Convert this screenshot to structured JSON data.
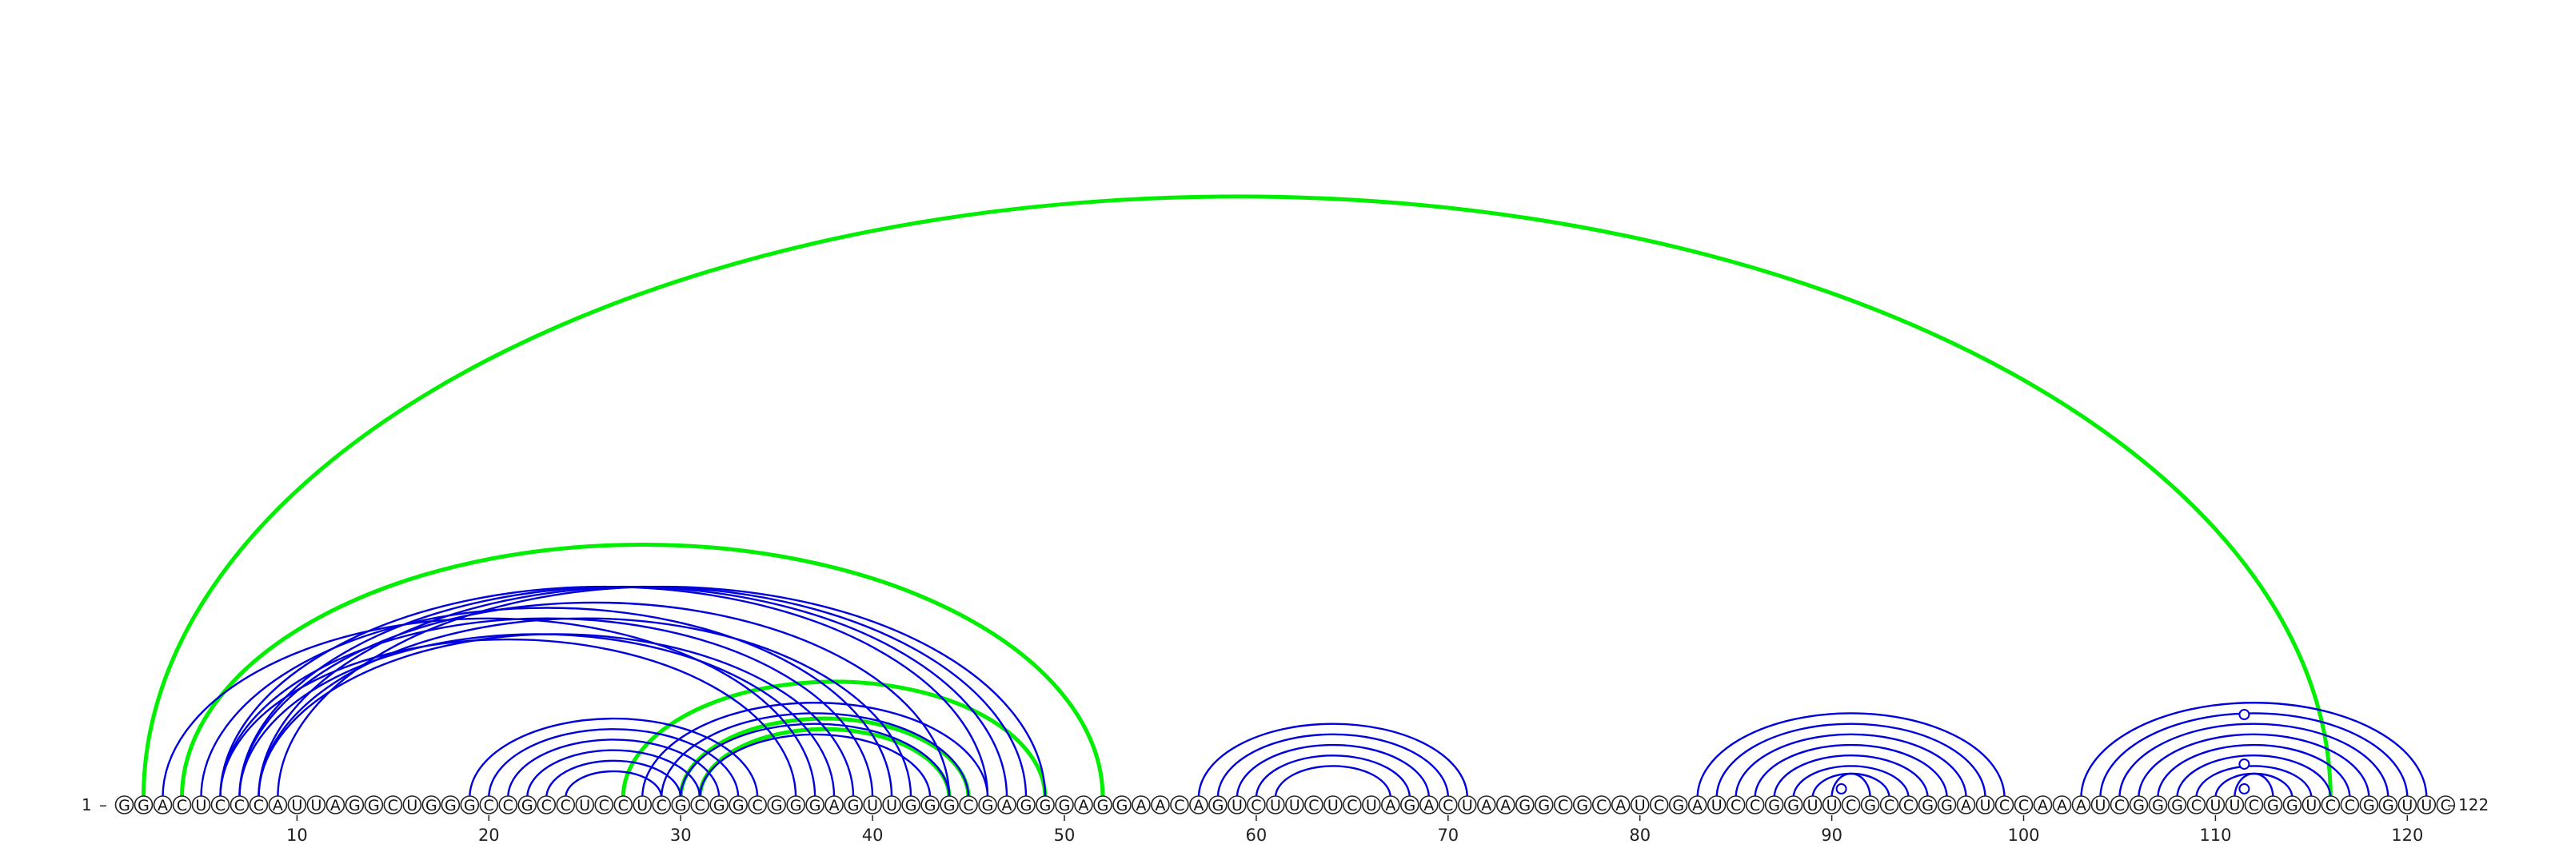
{
  "diagram": {
    "type": "rna-arc-diagram",
    "sequence": "GGACUCCCAUUAGGCUGGGCCGCCUCCUCGCGGCGGGAGUUGGGCGAGGGAGGAACAGUCUUCUCUAGACUAAGGCGCAUCGAUCCGGUUCGCCGGAUCCAAAUCGGGCUUCGGUCCGGUUC",
    "start_label": "1",
    "end_label": "122",
    "ticks": [
      10,
      20,
      30,
      40,
      50,
      60,
      70,
      80,
      90,
      100,
      110,
      120
    ],
    "colors": {
      "stem": "#0000dd",
      "pseudoknot": "#00ee00",
      "text": "#111111"
    },
    "blue_pairs": [
      [
        3,
        37
      ],
      [
        6,
        36
      ],
      [
        7,
        38
      ],
      [
        8,
        39
      ],
      [
        5,
        41
      ],
      [
        6,
        40
      ],
      [
        7,
        44
      ],
      [
        8,
        42
      ],
      [
        6,
        46
      ],
      [
        7,
        47
      ],
      [
        8,
        48
      ],
      [
        9,
        49
      ],
      [
        19,
        34
      ],
      [
        20,
        33
      ],
      [
        21,
        32
      ],
      [
        22,
        31
      ],
      [
        23,
        30
      ],
      [
        24,
        29
      ],
      [
        28,
        46
      ],
      [
        29,
        45
      ],
      [
        30,
        44
      ],
      [
        31,
        43
      ],
      [
        57,
        71
      ],
      [
        58,
        70
      ],
      [
        59,
        69
      ],
      [
        60,
        68
      ],
      [
        61,
        67
      ],
      [
        83,
        99
      ],
      [
        84,
        98
      ],
      [
        85,
        97
      ],
      [
        86,
        96
      ],
      [
        87,
        95
      ],
      [
        88,
        94
      ],
      [
        89,
        93
      ],
      [
        90,
        92
      ],
      [
        103,
        121
      ],
      [
        104,
        120
      ],
      [
        105,
        119
      ],
      [
        106,
        118
      ],
      [
        107,
        117
      ],
      [
        108,
        116
      ],
      [
        109,
        115
      ],
      [
        110,
        114
      ],
      [
        111,
        113
      ]
    ],
    "green_pairs": [
      [
        2,
        116
      ],
      [
        4,
        52
      ],
      [
        27,
        49
      ],
      [
        30,
        45
      ],
      [
        31,
        44
      ]
    ],
    "markers": [
      {
        "position": 90.5,
        "level": 1
      },
      {
        "position": 111.5,
        "level": 1
      },
      {
        "position": 111.5,
        "level": 2
      },
      {
        "position": 111.5,
        "level": 4
      }
    ]
  }
}
